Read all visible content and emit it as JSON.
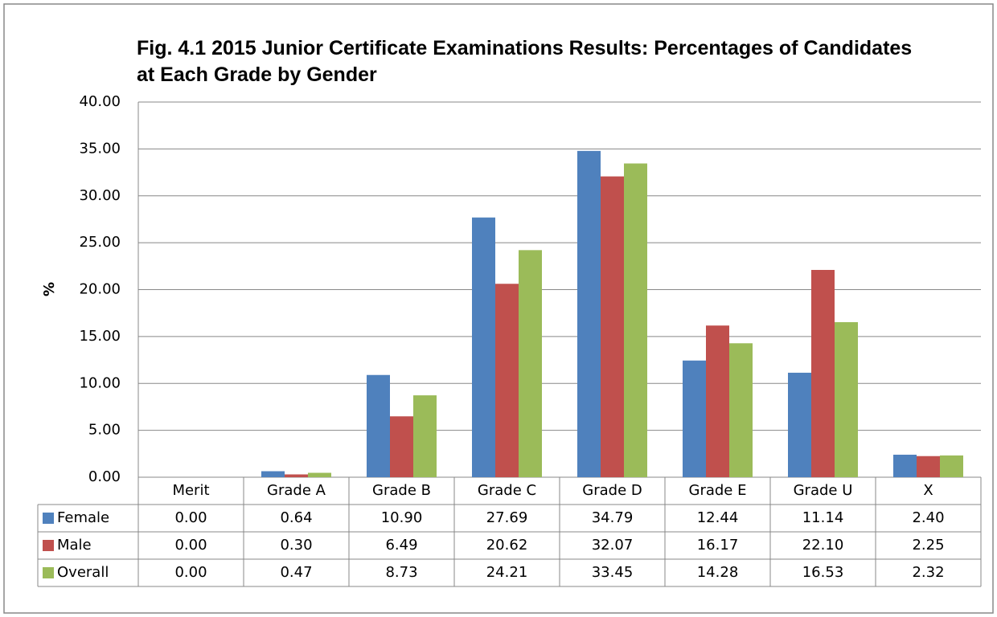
{
  "chart_data": {
    "type": "bar",
    "title": "Fig. 4.1 2015 Junior Certificate Examinations Results: Percentages of Candidates at Each Grade by Gender",
    "y_label": "%",
    "categories": [
      "Merit",
      "Grade A",
      "Grade B",
      "Grade C",
      "Grade D",
      "Grade E",
      "Grade U",
      "X"
    ],
    "series": [
      {
        "name": "Female",
        "color": "#4f81bd",
        "values": [
          0,
          0.64,
          10.9,
          27.69,
          34.79,
          12.44,
          11.14,
          2.4
        ],
        "value_labels": [
          "0.00",
          "0.64",
          "10.90",
          "27.69",
          "34.79",
          "12.44",
          "11.14",
          "2.40"
        ]
      },
      {
        "name": "Male",
        "color": "#c0504d",
        "values": [
          0,
          0.3,
          6.49,
          20.62,
          32.07,
          16.17,
          22.1,
          2.25
        ],
        "value_labels": [
          "0.00",
          "0.30",
          "6.49",
          "20.62",
          "32.07",
          "16.17",
          "22.10",
          "2.25"
        ]
      },
      {
        "name": "Overall",
        "color": "#9bbb59",
        "values": [
          0,
          0.47,
          8.73,
          24.21,
          33.45,
          14.28,
          16.53,
          2.32
        ],
        "value_labels": [
          "0.00",
          "0.47",
          "8.73",
          "24.21",
          "33.45",
          "14.28",
          "16.53",
          "2.32"
        ]
      }
    ],
    "ylim": [
      0,
      40
    ],
    "yticks": [
      {
        "value": 0,
        "label": "0.00"
      },
      {
        "value": 5,
        "label": "5.00"
      },
      {
        "value": 10,
        "label": "10.00"
      },
      {
        "value": 15,
        "label": "15.00"
      },
      {
        "value": 20,
        "label": "20.00"
      },
      {
        "value": 25,
        "label": "25.00"
      },
      {
        "value": 30,
        "label": "30.00"
      },
      {
        "value": 35,
        "label": "35.00"
      },
      {
        "value": 40,
        "label": "40.00"
      }
    ],
    "grid": true
  }
}
